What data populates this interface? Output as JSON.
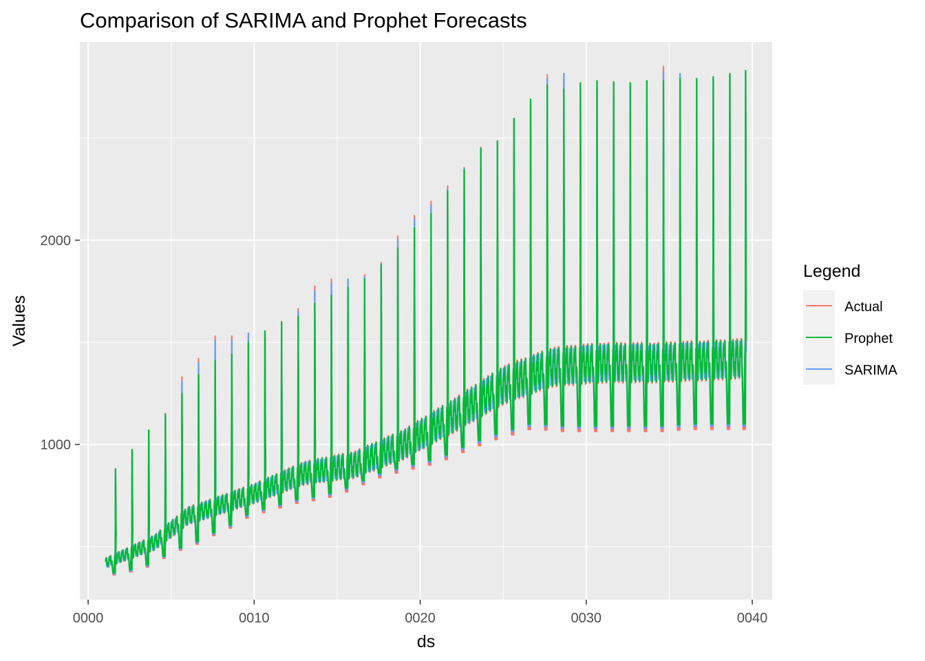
{
  "chart_data": {
    "type": "line",
    "title": "Comparison of SARIMA and Prophet Forecasts",
    "xlabel": "ds",
    "ylabel": "Values",
    "x_ticks": [
      "0000",
      "0010",
      "0020",
      "0030",
      "0040"
    ],
    "x_tick_values": [
      0,
      10,
      20,
      30,
      40
    ],
    "y_ticks": [
      "1000",
      "2000"
    ],
    "y_tick_values": [
      1000,
      2000
    ],
    "xlim": [
      -0.5,
      41.2
    ],
    "ylim": [
      240,
      2970
    ],
    "grid": true,
    "legend": {
      "title": "Legend",
      "position": "right",
      "entries": [
        "Actual",
        "Prophet",
        "SARIMA"
      ]
    },
    "colors": {
      "Actual": "#F8766D",
      "Prophet": "#00BA38",
      "SARIMA": "#619CFF"
    },
    "x_start": 1.05,
    "x_end": 39.6,
    "period": 1,
    "seasonal_base": [
      [
        1.05,
        420
      ],
      [
        4,
        520
      ],
      [
        6,
        650
      ],
      [
        10,
        760
      ],
      [
        13,
        860
      ],
      [
        16,
        900
      ],
      [
        19,
        1000
      ],
      [
        22,
        1140
      ],
      [
        25,
        1290
      ],
      [
        28,
        1380
      ],
      [
        31,
        1400
      ],
      [
        34,
        1400
      ],
      [
        37,
        1410
      ],
      [
        39.6,
        1420
      ]
    ],
    "seasonal_amplitude": [
      [
        1.05,
        35
      ],
      [
        5,
        60
      ],
      [
        10,
        70
      ],
      [
        20,
        110
      ],
      [
        25,
        135
      ],
      [
        30,
        140
      ],
      [
        39.6,
        140
      ]
    ],
    "trough_lows": [
      [
        1,
        400
      ],
      [
        2,
        350
      ],
      [
        3,
        400
      ],
      [
        4,
        410
      ],
      [
        5,
        470
      ],
      [
        6,
        500
      ],
      [
        7,
        530
      ],
      [
        8,
        580
      ],
      [
        9,
        610
      ],
      [
        10,
        670
      ],
      [
        11,
        680
      ],
      [
        12,
        710
      ],
      [
        13,
        730
      ],
      [
        14,
        740
      ],
      [
        15,
        760
      ],
      [
        16,
        790
      ],
      [
        17,
        830
      ],
      [
        18,
        860
      ],
      [
        19,
        880
      ],
      [
        20,
        900
      ],
      [
        21,
        920
      ],
      [
        22,
        950
      ],
      [
        23,
        990
      ],
      [
        24,
        1020
      ],
      [
        25,
        1050
      ],
      [
        26,
        1070
      ],
      [
        27,
        1100
      ],
      [
        28,
        1080
      ],
      [
        29,
        1080
      ],
      [
        30,
        1080
      ],
      [
        31,
        1080
      ],
      [
        32,
        1080
      ],
      [
        33,
        1080
      ],
      [
        34,
        1080
      ],
      [
        35,
        1080
      ],
      [
        36,
        1090
      ],
      [
        37,
        1090
      ],
      [
        38,
        1090
      ],
      [
        39,
        1090
      ]
    ],
    "peaks": [
      {
        "x": 1.65,
        "actual": 880,
        "prophet": 880,
        "sarima": 870
      },
      {
        "x": 2.65,
        "actual": 975,
        "prophet": 975,
        "sarima": 965
      },
      {
        "x": 3.65,
        "actual": 1070,
        "prophet": 1070,
        "sarima": 1060
      },
      {
        "x": 4.65,
        "actual": 1150,
        "prophet": 1150,
        "sarima": 1140
      },
      {
        "x": 5.65,
        "actual": 1330,
        "prophet": 1250,
        "sarima": 1310
      },
      {
        "x": 6.65,
        "actual": 1420,
        "prophet": 1340,
        "sarima": 1400
      },
      {
        "x": 7.65,
        "actual": 1530,
        "prophet": 1410,
        "sarima": 1510
      },
      {
        "x": 8.65,
        "actual": 1530,
        "prophet": 1440,
        "sarima": 1510
      },
      {
        "x": 9.65,
        "actual": 1520,
        "prophet": 1500,
        "sarima": 1545
      },
      {
        "x": 10.65,
        "actual": 1555,
        "prophet": 1555,
        "sarima": 1545
      },
      {
        "x": 11.65,
        "actual": 1600,
        "prophet": 1600,
        "sarima": 1590
      },
      {
        "x": 12.65,
        "actual": 1665,
        "prophet": 1625,
        "sarima": 1650
      },
      {
        "x": 13.65,
        "actual": 1775,
        "prophet": 1690,
        "sarima": 1750
      },
      {
        "x": 14.65,
        "actual": 1810,
        "prophet": 1730,
        "sarima": 1790
      },
      {
        "x": 15.65,
        "actual": 1790,
        "prophet": 1770,
        "sarima": 1810
      },
      {
        "x": 16.65,
        "actual": 1830,
        "prophet": 1810,
        "sarima": 1820
      },
      {
        "x": 17.65,
        "actual": 1890,
        "prophet": 1880,
        "sarima": 1880
      },
      {
        "x": 18.65,
        "actual": 2020,
        "prophet": 1960,
        "sarima": 2000
      },
      {
        "x": 19.65,
        "actual": 2120,
        "prophet": 2060,
        "sarima": 2100
      },
      {
        "x": 20.65,
        "actual": 2190,
        "prophet": 2130,
        "sarima": 2170
      },
      {
        "x": 21.65,
        "actual": 2265,
        "prophet": 2240,
        "sarima": 2250
      },
      {
        "x": 22.65,
        "actual": 2355,
        "prophet": 2345,
        "sarima": 2350
      },
      {
        "x": 23.65,
        "actual": 2455,
        "prophet": 2450,
        "sarima": 2450
      },
      {
        "x": 24.65,
        "actual": 2485,
        "prophet": 2485,
        "sarima": 2480
      },
      {
        "x": 25.65,
        "actual": 2595,
        "prophet": 2595,
        "sarima": 2590
      },
      {
        "x": 26.65,
        "actual": 2690,
        "prophet": 2690,
        "sarima": 2685
      },
      {
        "x": 27.65,
        "actual": 2810,
        "prophet": 2760,
        "sarima": 2790
      },
      {
        "x": 28.65,
        "actual": 2780,
        "prophet": 2740,
        "sarima": 2815
      },
      {
        "x": 29.65,
        "actual": 2770,
        "prophet": 2770,
        "sarima": 2760
      },
      {
        "x": 30.65,
        "actual": 2780,
        "prophet": 2780,
        "sarima": 2770
      },
      {
        "x": 31.65,
        "actual": 2775,
        "prophet": 2775,
        "sarima": 2770
      },
      {
        "x": 32.65,
        "actual": 2770,
        "prophet": 2770,
        "sarima": 2765
      },
      {
        "x": 33.65,
        "actual": 2780,
        "prophet": 2780,
        "sarima": 2775
      },
      {
        "x": 34.65,
        "actual": 2850,
        "prophet": 2780,
        "sarima": 2820
      },
      {
        "x": 35.65,
        "actual": 2800,
        "prophet": 2790,
        "sarima": 2815
      },
      {
        "x": 36.65,
        "actual": 2790,
        "prophet": 2790,
        "sarima": 2780
      },
      {
        "x": 37.65,
        "actual": 2800,
        "prophet": 2800,
        "sarima": 2795
      },
      {
        "x": 38.65,
        "actual": 2815,
        "prophet": 2815,
        "sarima": 2810
      },
      {
        "x": 39.6,
        "actual": 2830,
        "prophet": 2830,
        "sarima": 2825
      }
    ]
  }
}
